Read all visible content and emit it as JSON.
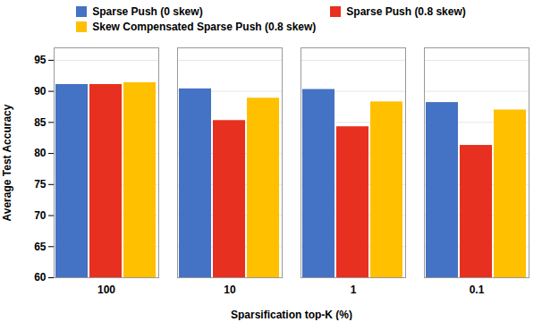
{
  "chart_data": {
    "type": "bar",
    "categories": [
      "100",
      "10",
      "1",
      "0.1"
    ],
    "series": [
      {
        "name": "Sparse Push (0 skew)",
        "color": "#4472C4",
        "values": [
          91.1,
          90.4,
          90.3,
          88.2
        ]
      },
      {
        "name": "Sparse Push (0.8 skew)",
        "color": "#E83020",
        "values": [
          91.1,
          85.3,
          84.3,
          81.3
        ]
      },
      {
        "name": "Skew Compensated Sparse Push (0.8 skew)",
        "color": "#FFC000",
        "values": [
          91.4,
          88.9,
          88.3,
          87.0
        ]
      }
    ],
    "xlabel": "Sparsification top-K (%)",
    "ylabel": "Average Test Accuracy",
    "ylim": [
      60,
      97
    ],
    "yticks": [
      60,
      65,
      70,
      75,
      80,
      85,
      90,
      95
    ],
    "grid": true,
    "legend": "top"
  }
}
